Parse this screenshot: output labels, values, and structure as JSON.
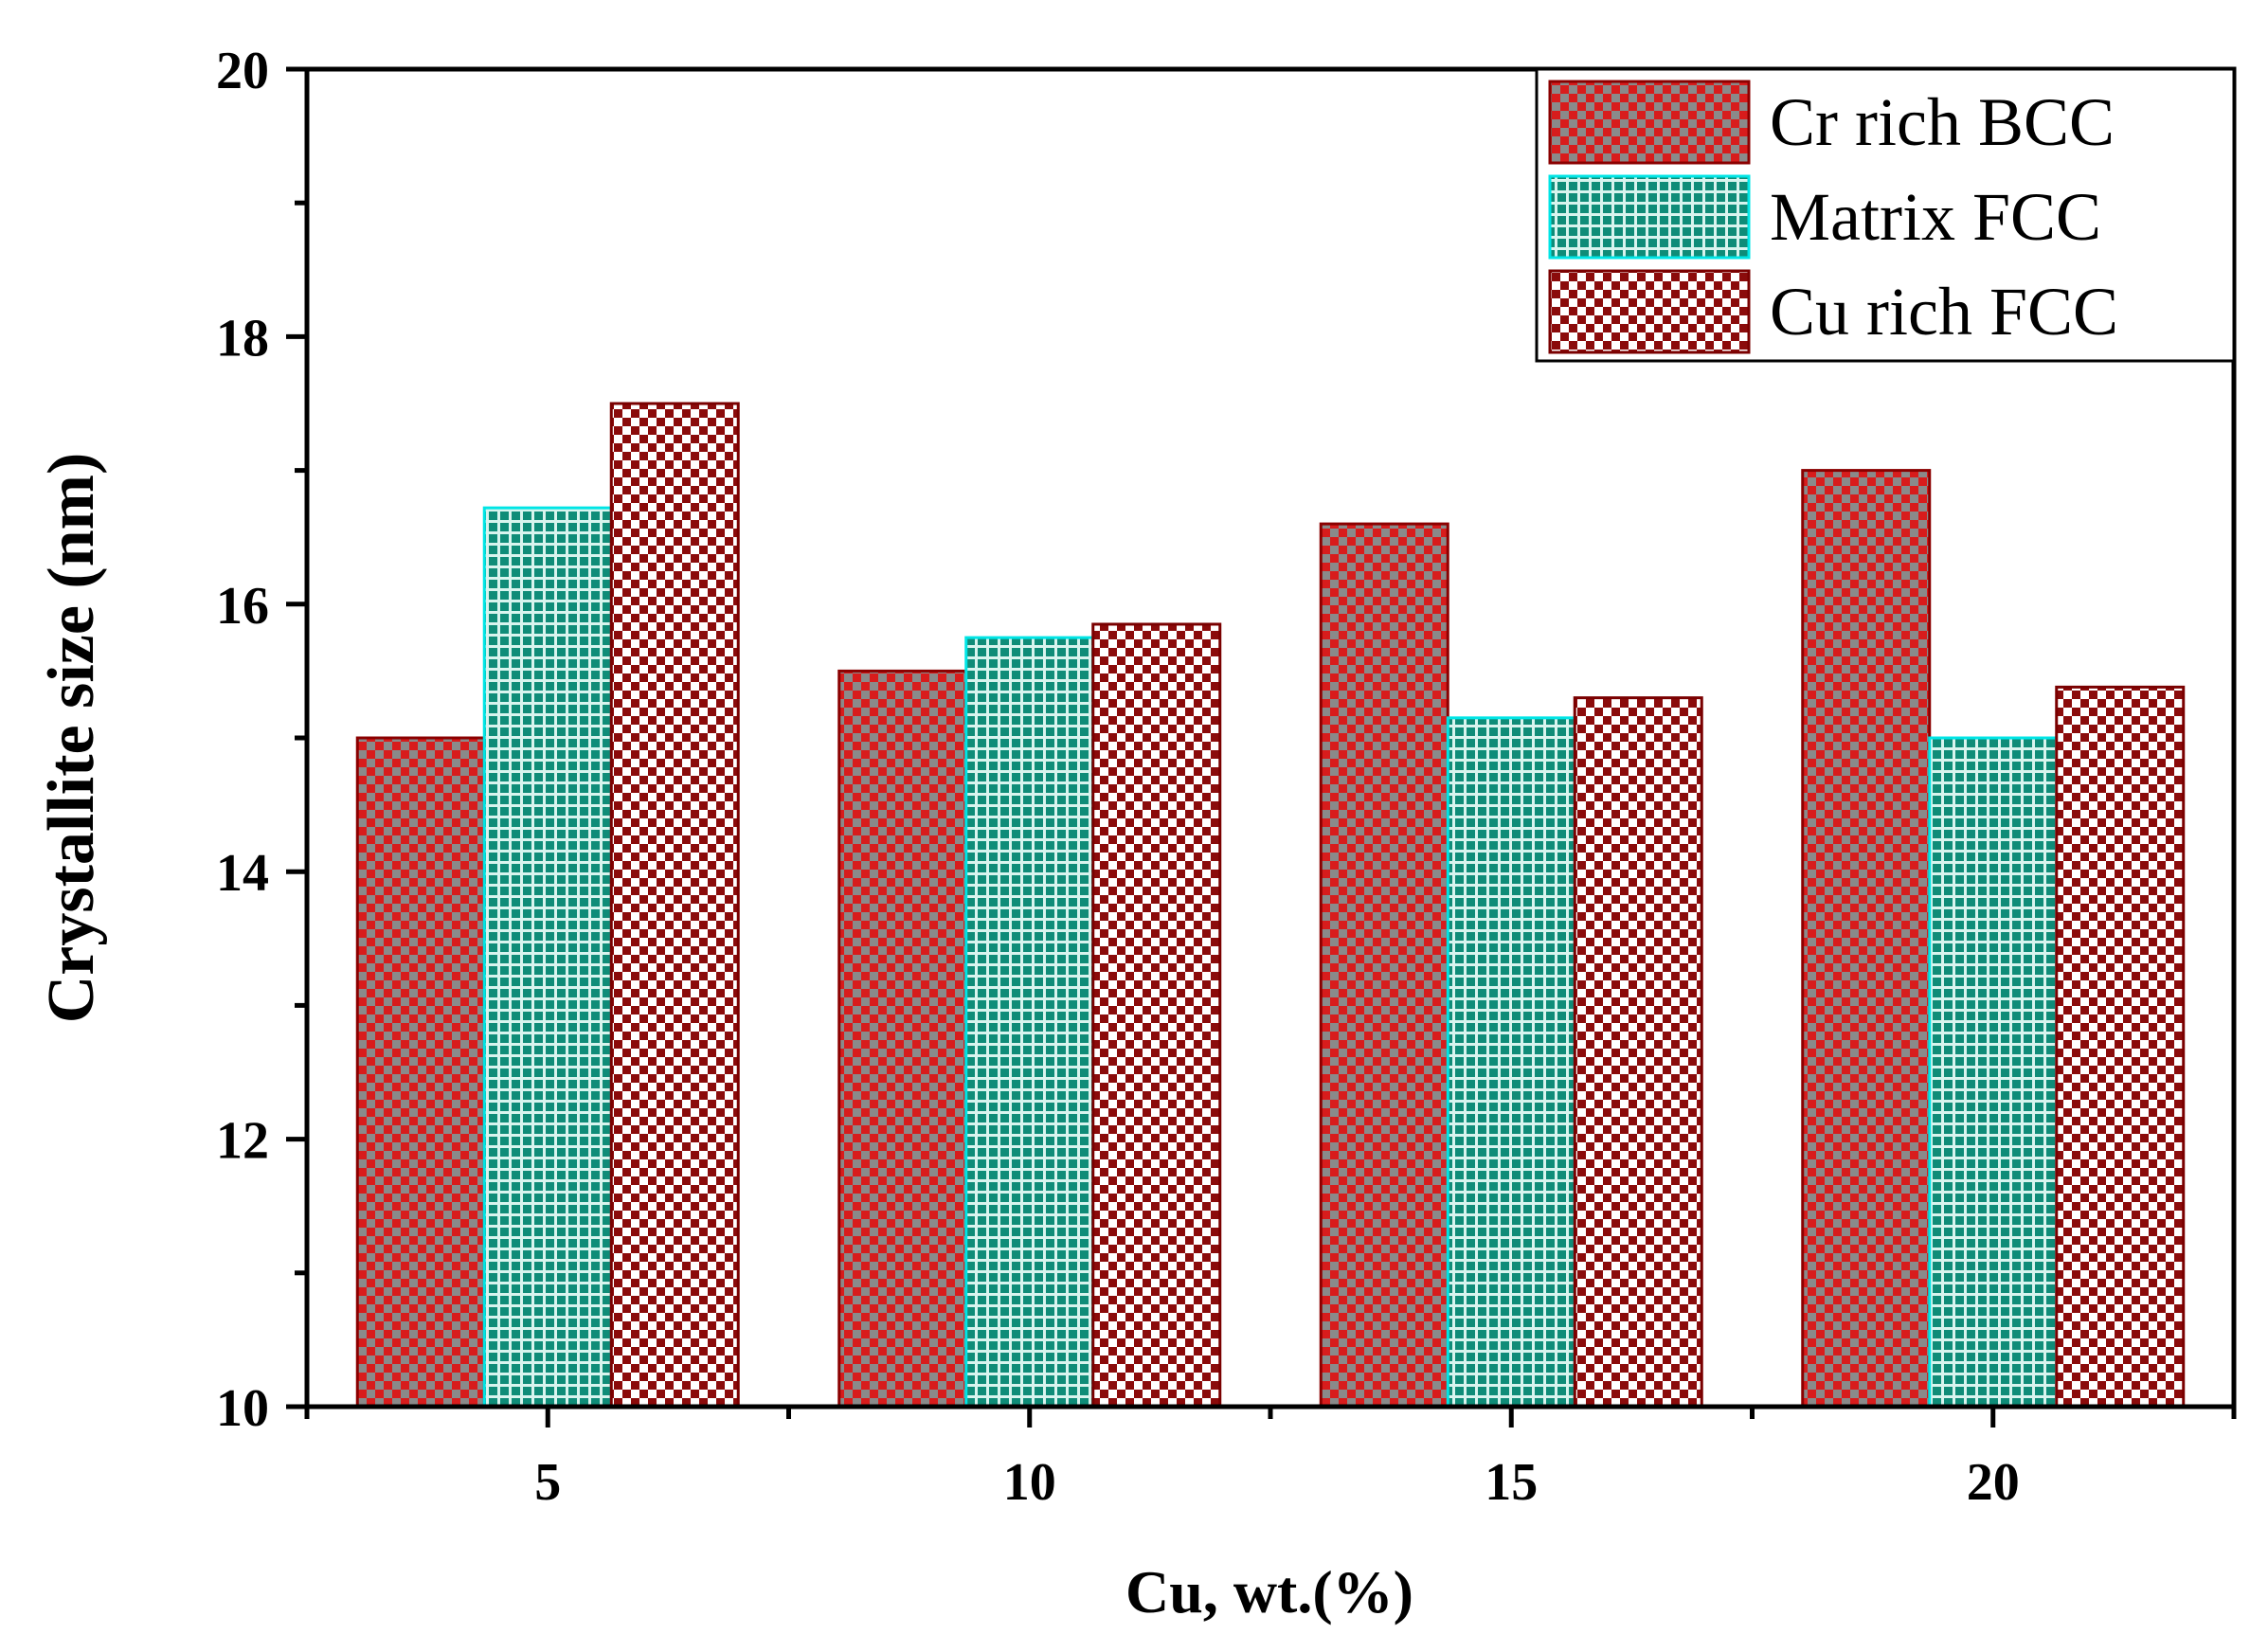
{
  "chart_data": {
    "type": "bar",
    "title": "",
    "xlabel": "Cu, wt.(%)",
    "ylabel": "Crystallite size (nm)",
    "categories": [
      "5",
      "10",
      "15",
      "20"
    ],
    "ylim": [
      10,
      20
    ],
    "yticks": [
      "10",
      "12",
      "14",
      "16",
      "18",
      "20"
    ],
    "grid": false,
    "legend_position": "top-right",
    "series": [
      {
        "name": "Cr rich BCC",
        "values": [
          15.0,
          15.5,
          16.6,
          17.0
        ],
        "color": "#d81c1c",
        "pattern_color": "#7a7a7a",
        "edge": "#8b0000"
      },
      {
        "name": "Matrix FCC",
        "values": [
          16.72,
          15.75,
          15.15,
          15.0
        ],
        "color": "#0e8f7a",
        "pattern_color": "#d8f4ee",
        "edge": "#00e5e5"
      },
      {
        "name": "Cu rich FCC",
        "values": [
          17.5,
          15.85,
          15.3,
          15.38
        ],
        "color": "#8b0b0b",
        "pattern_color": "#ffffff",
        "edge": "#7a0000"
      }
    ]
  }
}
